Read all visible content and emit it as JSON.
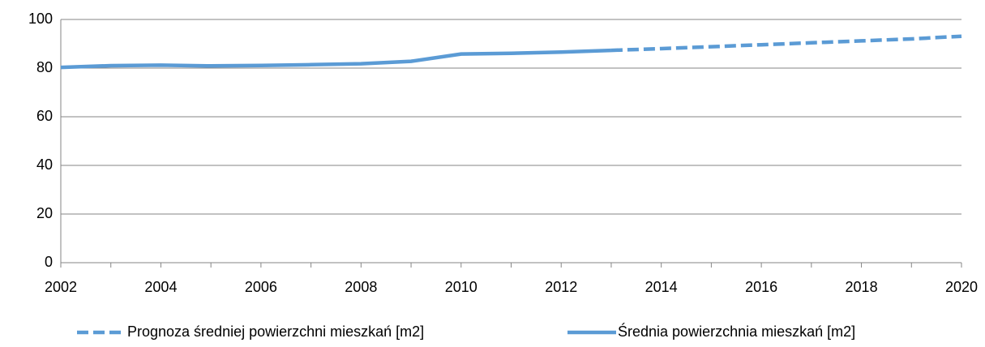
{
  "chart_data": {
    "type": "line",
    "x": [
      2002,
      2003,
      2004,
      2005,
      2006,
      2007,
      2008,
      2009,
      2010,
      2011,
      2012,
      2013,
      2014,
      2015,
      2016,
      2017,
      2018,
      2019,
      2020
    ],
    "series": [
      {
        "name": "Prognoza średniej powierzchni mieszkań  [m2]",
        "color": "#5b9bd5",
        "dashed": true,
        "values": [
          null,
          null,
          null,
          null,
          null,
          null,
          null,
          null,
          null,
          null,
          null,
          87.3,
          88.0,
          88.8,
          89.6,
          90.4,
          91.2,
          92.0,
          93.1
        ]
      },
      {
        "name": "Średnia powierzchnia mieszkań  [m2]",
        "color": "#5b9bd5",
        "dashed": false,
        "values": [
          80.3,
          81.0,
          81.2,
          80.9,
          81.1,
          81.4,
          81.8,
          82.8,
          85.8,
          86.1,
          86.6,
          87.3,
          null,
          null,
          null,
          null,
          null,
          null,
          null
        ]
      }
    ],
    "xlim": [
      2002,
      2020
    ],
    "xticks": [
      2002,
      2004,
      2006,
      2008,
      2010,
      2012,
      2014,
      2016,
      2018,
      2020
    ],
    "minor_xticks": [
      2003,
      2005,
      2007,
      2009,
      2011,
      2013,
      2015,
      2017,
      2019
    ],
    "ylim": [
      0,
      100
    ],
    "yticks": [
      0,
      20,
      40,
      60,
      80,
      100
    ],
    "grid": true,
    "legend": "bottom"
  }
}
